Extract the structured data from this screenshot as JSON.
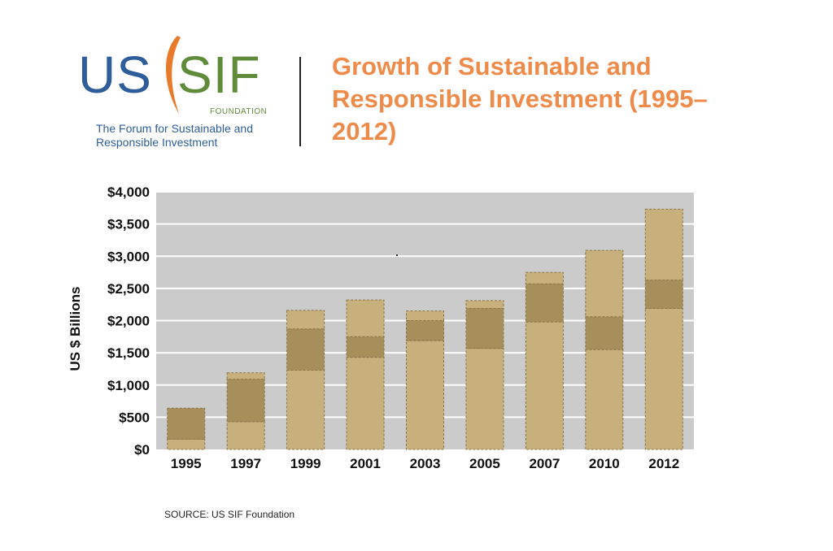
{
  "logo": {
    "us": "US",
    "sif": "SIF",
    "foundation": "FOUNDATION",
    "tagline": "The Forum for Sustainable and Responsible Investment"
  },
  "title": "Growth of Sustainable and Responsible Investment (1995–2012)",
  "source": "SOURCE: US SIF Foundation",
  "colors": {
    "plot_background": "#cbcbcb",
    "bar_light": "#c8b07c",
    "bar_dark": "#a78f5c",
    "title": "#ee8a4a",
    "brand_blue": "#2f5d9b",
    "brand_green": "#5f8b3a"
  },
  "chart_data": {
    "type": "bar",
    "stacked": true,
    "ylabel": "US $ Billions",
    "xlabel": "",
    "ylim": [
      0,
      4000
    ],
    "yticks": [
      "$0",
      "$500",
      "$1,000",
      "$1,500",
      "$2,000",
      "$2,500",
      "$3,000",
      "$3,500",
      "$4,000"
    ],
    "ytick_values": [
      0,
      500,
      1000,
      1500,
      2000,
      2500,
      3000,
      3500,
      4000
    ],
    "grid": true,
    "categories": [
      "1995",
      "1997",
      "1999",
      "2001",
      "2003",
      "2005",
      "2007",
      "2010",
      "2012"
    ],
    "series": [
      {
        "values": [
          160,
          430,
          1230,
          1430,
          1690,
          1570,
          1980,
          1550,
          2190
        ]
      },
      {
        "values": [
          480,
          660,
          640,
          320,
          310,
          620,
          590,
          510,
          440
        ]
      },
      {
        "values": [
          0,
          100,
          290,
          570,
          150,
          120,
          180,
          1030,
          1100
        ]
      }
    ],
    "totals": [
      640,
      1190,
      2160,
      2320,
      2150,
      2310,
      2750,
      3090,
      3730
    ]
  }
}
